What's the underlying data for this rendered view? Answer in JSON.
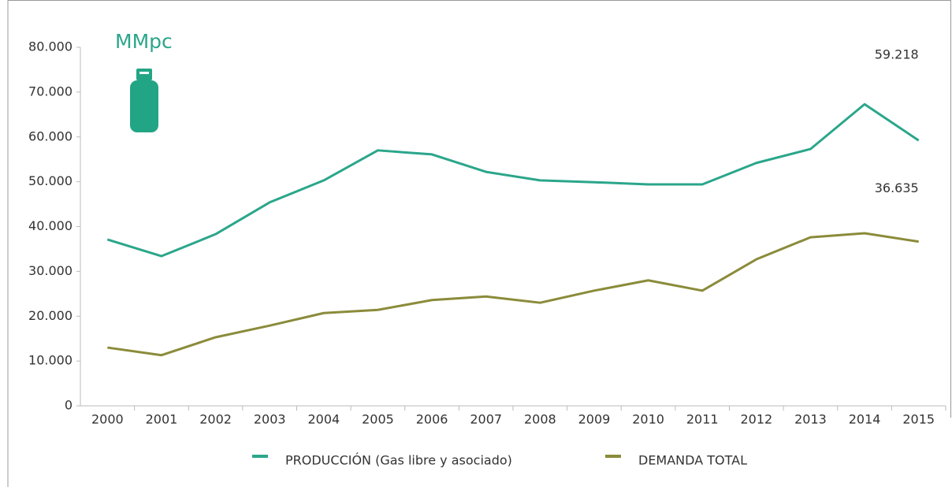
{
  "chart_data": {
    "type": "line",
    "annotation": "MMpc",
    "categories": [
      "2000",
      "2001",
      "2002",
      "2003",
      "2004",
      "2005",
      "2006",
      "2007",
      "2008",
      "2009",
      "2010",
      "2011",
      "2012",
      "2013",
      "2014",
      "2015"
    ],
    "series": [
      {
        "name": "PRODUCCIÓN (Gas libre y asociado)",
        "color": "#2ba68b",
        "values": [
          37100,
          33400,
          38300,
          45400,
          50300,
          57000,
          56100,
          52200,
          50300,
          49900,
          49400,
          49400,
          54200,
          57300,
          67300,
          59218
        ],
        "value_labels": [
          null,
          null,
          null,
          null,
          null,
          null,
          null,
          null,
          null,
          null,
          null,
          null,
          null,
          null,
          null,
          "59.218"
        ]
      },
      {
        "name": "DEMANDA TOTAL",
        "color": "#8b8b3b",
        "values": [
          13000,
          11300,
          15300,
          17900,
          20700,
          21400,
          23600,
          24400,
          23000,
          25700,
          28000,
          25700,
          32700,
          37600,
          38500,
          36635
        ],
        "value_labels": [
          null,
          null,
          null,
          null,
          null,
          null,
          null,
          null,
          null,
          null,
          null,
          null,
          null,
          null,
          null,
          "36.635"
        ]
      }
    ],
    "ylim": [
      0,
      80000
    ],
    "yticks": [
      0,
      {
        "value": 10000,
        "label": "10.000"
      },
      {
        "value": 20000,
        "label": "20.000"
      },
      {
        "value": 30000,
        "label": "30.000"
      },
      {
        "value": 40000,
        "label": "40.000"
      },
      {
        "value": 50000,
        "label": "50.000"
      },
      {
        "value": 60000,
        "label": "60.000"
      },
      {
        "value": 70000,
        "label": "70.000"
      },
      {
        "value": 80000,
        "label": "80.000"
      }
    ],
    "grid": false,
    "legend": "bottom"
  }
}
